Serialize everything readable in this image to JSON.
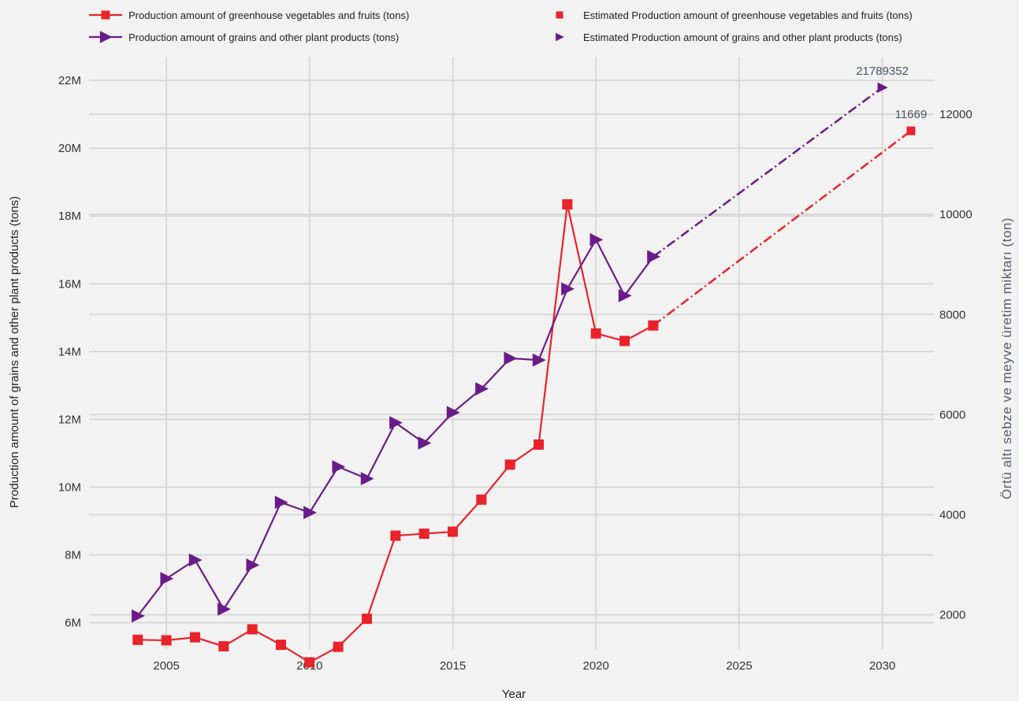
{
  "chart_data": {
    "type": "line",
    "xlabel": "Year",
    "ylabel_left": "Production amount of grains and other plant products (tons)",
    "ylabel_right": "Örtü altı sebze ve meyve üretim miktarı (ton)",
    "x_range": [
      2002.3,
      2031.8
    ],
    "x_ticks": [
      2005,
      2010,
      2015,
      2020,
      2025,
      2030
    ],
    "left_axis": {
      "range": [
        5200000,
        22700000
      ],
      "ticks": [
        6000000,
        8000000,
        10000000,
        12000000,
        14000000,
        16000000,
        18000000,
        20000000,
        22000000
      ],
      "tick_labels": [
        "6M",
        "8M",
        "10M",
        "12M",
        "14M",
        "16M",
        "18M",
        "20M",
        "22M"
      ]
    },
    "right_axis": {
      "range": [
        1300,
        13150
      ],
      "ticks": [
        2000,
        4000,
        6000,
        8000,
        10000,
        12000
      ],
      "tick_labels": [
        "2000",
        "4000",
        "6000",
        "8000",
        "10000",
        "12000"
      ]
    },
    "grid": true,
    "legend": {
      "placement": "top",
      "entries": [
        "Production amount of greenhouse vegetables and fruits (tons)",
        "Production amount of grains and other plant products (tons)",
        "Estimated Production amount of greenhouse vegetables and fruits (tons)",
        "Estimated Production amount of grains and other plant products (tons)"
      ]
    },
    "series": [
      {
        "name": "Production amount of greenhouse vegetables and fruits (tons)",
        "axis": "right",
        "color": "#e8232a",
        "marker": "square",
        "x": [
          2004,
          2005,
          2006,
          2007,
          2008,
          2009,
          2010,
          2011,
          2012,
          2013,
          2014,
          2015,
          2016,
          2017,
          2018,
          2019,
          2020,
          2021,
          2022
        ],
        "y": [
          1500,
          1490,
          1550,
          1370,
          1710,
          1400,
          1050,
          1360,
          1920,
          3580,
          3620,
          3660,
          4300,
          5000,
          5400,
          10200,
          7620,
          7470,
          7780
        ]
      },
      {
        "name": "Production amount of grains and other plant products (tons)",
        "axis": "left",
        "color": "#6a1b8a",
        "marker": "triangle",
        "x": [
          2004,
          2005,
          2006,
          2007,
          2008,
          2009,
          2010,
          2011,
          2012,
          2013,
          2014,
          2015,
          2016,
          2017,
          2018,
          2019,
          2020,
          2021,
          2022
        ],
        "y": [
          6200000,
          7300000,
          7850000,
          6400000,
          7700000,
          9550000,
          9250000,
          10600000,
          10250000,
          11900000,
          11300000,
          12200000,
          12900000,
          13800000,
          13750000,
          15850000,
          17300000,
          15650000,
          16800000
        ]
      },
      {
        "name": "Estimated Production amount of greenhouse vegetables and fruits (tons)",
        "axis": "right",
        "color": "#e8232a",
        "marker": "square",
        "dashed_from": [
          2022,
          7780
        ],
        "x": [
          2031
        ],
        "y": [
          11669
        ],
        "label": "11669"
      },
      {
        "name": "Estimated Production amount of grains and other plant products (tons)",
        "axis": "left",
        "color": "#6a1b8a",
        "marker": "triangle",
        "dashed_from": [
          2022,
          16800000
        ],
        "x": [
          2030
        ],
        "y": [
          21789352
        ],
        "label": "21789352"
      }
    ]
  }
}
